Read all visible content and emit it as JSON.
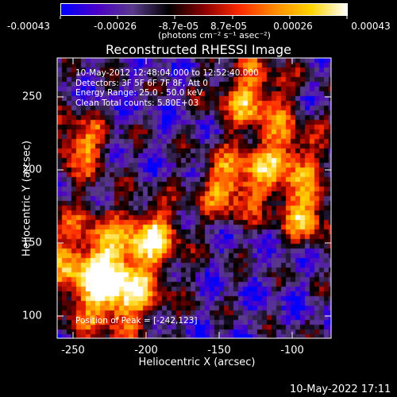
{
  "colorbar": {
    "colors": [
      "#0000ff",
      "#4b00c8",
      "#5a3a8c",
      "#000000",
      "#8b0000",
      "#ff2a00",
      "#ff8c00",
      "#ffd400",
      "#ffffff"
    ],
    "tick_labels": [
      "-0.00043",
      "-0.00026",
      "-8.7e-05",
      "8.7e-05",
      "0.00026",
      "0.00043"
    ],
    "unit": "(photons cm⁻² s⁻¹ asec⁻²)"
  },
  "title": "Reconstructed RHESSI Image",
  "info": {
    "line1": "10-May-2012 12:48:04.000 to 12:52:40.000",
    "line2": "Detectors: 3F 5F 6F 7F 8F, Att 0",
    "line3": "Energy Range: 25.0 - 50.0 keV",
    "line4": "Clean     Total counts: 5.80E+03"
  },
  "peak": "Position of Peak = [-242,123]",
  "axes": {
    "xlabel": "Heliocentric X (arcsec)",
    "ylabel": "Heliocentric Y (arcsec)",
    "xticks": [
      "-250",
      "-200",
      "-150",
      "-100"
    ],
    "yticks": [
      "250",
      "200",
      "150",
      "100"
    ]
  },
  "timestamp": "10-May-2022 17:11"
}
